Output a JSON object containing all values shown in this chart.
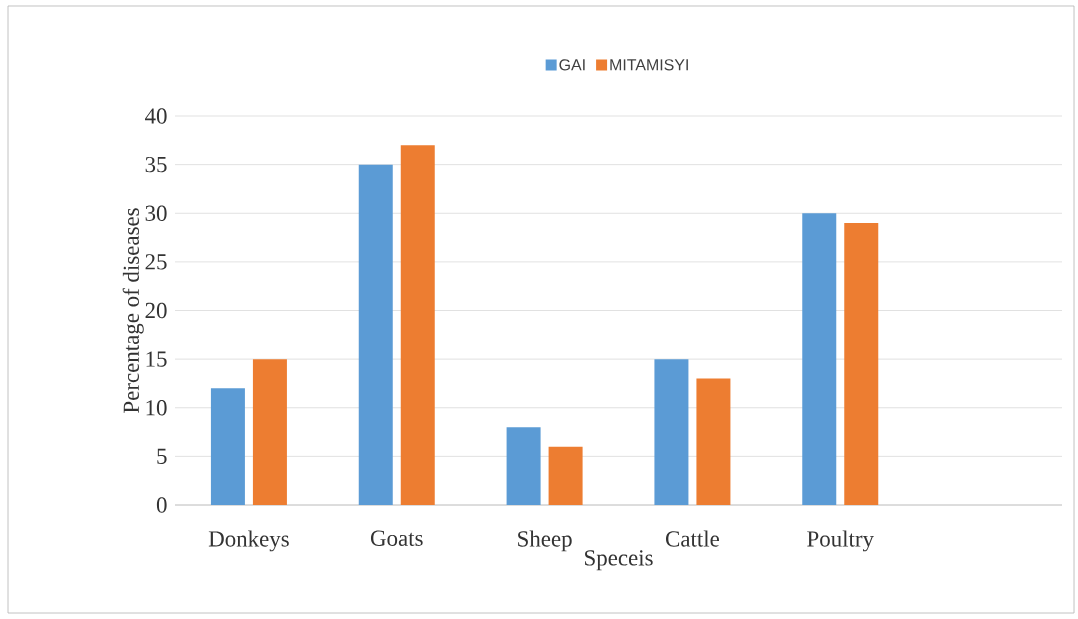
{
  "chart_data": {
    "type": "bar",
    "xlabel": "Speceis",
    "ylabel": "Percentage of diseases",
    "categories": [
      "Donkeys",
      "Goats",
      "Sheep",
      "Cattle",
      "Poultry",
      null
    ],
    "series": [
      {
        "name": "GAI",
        "color": "#5b9bd5",
        "values": [
          12,
          35,
          8,
          15,
          30,
          null
        ]
      },
      {
        "name": "MITAMISYI",
        "color": "#ed7d31",
        "values": [
          15,
          37,
          6,
          13,
          29,
          null
        ]
      }
    ],
    "ylim": [
      0,
      40
    ],
    "yticks": [
      0,
      5,
      10,
      15,
      20,
      25,
      30,
      35,
      40
    ],
    "grid": "y",
    "legend": "top"
  }
}
